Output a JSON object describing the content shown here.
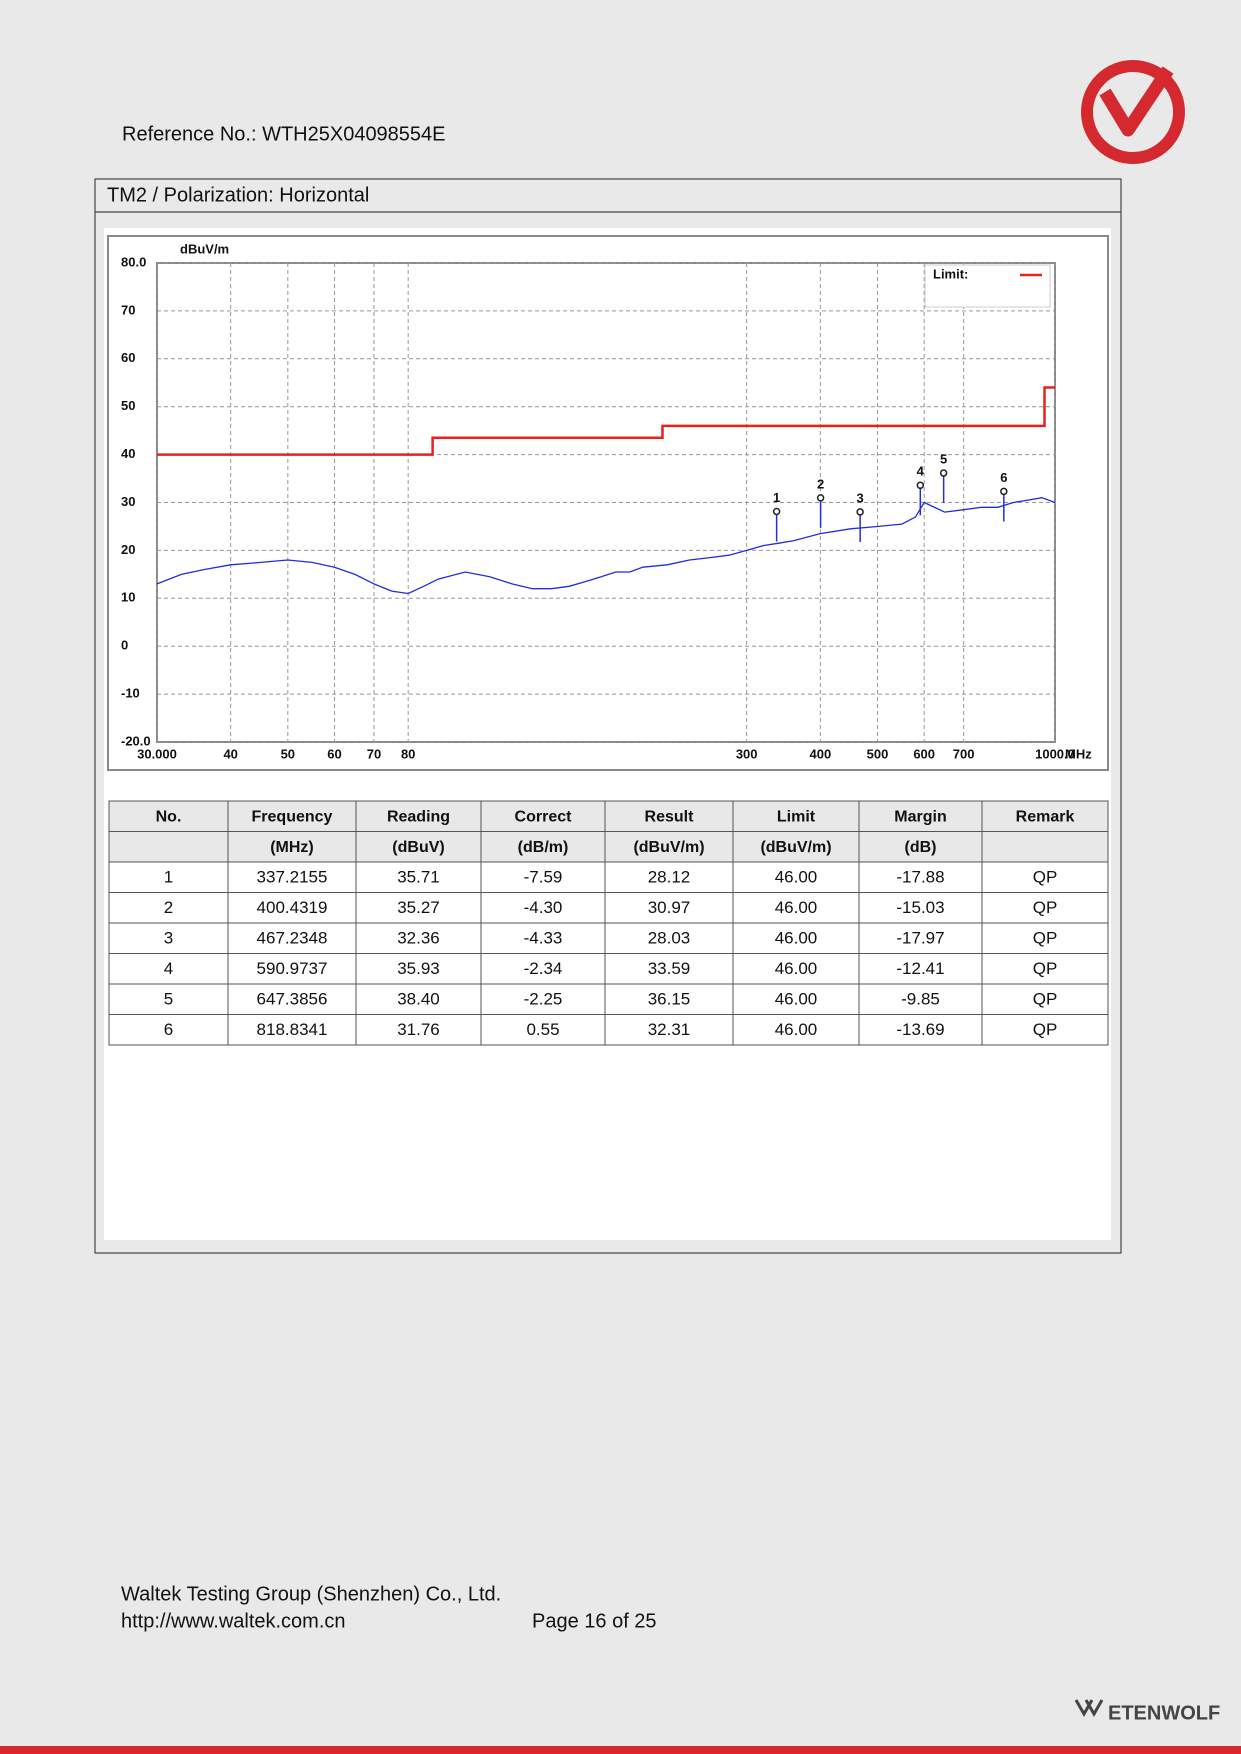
{
  "header": {
    "reference": "Reference No.: WTH25X04098554E"
  },
  "section": {
    "title": "TM2 / Polarization: Horizontal"
  },
  "chart_data": {
    "type": "line",
    "y_label": "dBuV/m",
    "x_label": "MHz",
    "xlog": true,
    "grid": true,
    "legend": "top-right",
    "xlim": [
      30,
      1000
    ],
    "xticks": [
      {
        "value": 30,
        "label": "30.000"
      },
      40,
      50,
      60,
      70,
      80,
      300,
      400,
      500,
      600,
      700,
      {
        "value": 1000,
        "label": "1000.0"
      }
    ],
    "ylim": [
      -20,
      80
    ],
    "yticks": [
      {
        "value": -20,
        "label": "-20.0"
      },
      -10,
      0,
      10,
      20,
      30,
      40,
      50,
      60,
      70,
      {
        "value": 80,
        "label": "80.0"
      }
    ],
    "series": [
      {
        "name": "Limit:",
        "color": "#e8211c",
        "x": [
          30,
          88,
          88,
          216,
          216,
          960,
          960,
          1000
        ],
        "values": [
          40,
          40,
          43.5,
          43.5,
          46,
          46,
          54,
          54
        ]
      },
      {
        "color": "#1f2ee0",
        "x": [
          30,
          33,
          36,
          40,
          45,
          50,
          55,
          60,
          65,
          70,
          75,
          80,
          85,
          90,
          100,
          110,
          120,
          130,
          140,
          150,
          160,
          170,
          180,
          190,
          200,
          220,
          240,
          260,
          280,
          300,
          320,
          340,
          360,
          400,
          450,
          500,
          550,
          580,
          600,
          650,
          700,
          750,
          800,
          850,
          900,
          950,
          1000
        ],
        "values": [
          13,
          15,
          16,
          17,
          17.5,
          18,
          17.5,
          16.5,
          15,
          13,
          11.5,
          11,
          12.5,
          14,
          15.5,
          14.5,
          13,
          12,
          12,
          12.5,
          13.5,
          14.5,
          15.5,
          15.5,
          16.5,
          17,
          18,
          18.5,
          19,
          20,
          21,
          21.5,
          22,
          23.5,
          24.5,
          25,
          25.5,
          27,
          30,
          28,
          28.5,
          29,
          29,
          30,
          30.5,
          31,
          30
        ]
      }
    ],
    "markers": {
      "labels": [
        "1",
        "2",
        "3",
        "4",
        "5",
        "6"
      ],
      "x": [
        337.2155,
        400.4319,
        467.2348,
        590.9737,
        647.3856,
        818.8341
      ],
      "values": [
        28.12,
        30.97,
        28.03,
        33.59,
        36.15,
        32.31
      ]
    }
  },
  "table": {
    "header": [
      [
        "No.",
        "Frequency",
        "Reading",
        "Correct",
        "Result",
        "Limit",
        "Margin",
        "Remark"
      ],
      [
        null,
        "(MHz)",
        "(dBuV)",
        "(dB/m)",
        "(dBuV/m)",
        "(dBuV/m)",
        "(dB)",
        null
      ]
    ],
    "rows": [
      [
        "1",
        "337.2155",
        "35.71",
        "-7.59",
        "28.12",
        "46.00",
        "-17.88",
        "QP"
      ],
      [
        "2",
        "400.4319",
        "35.27",
        "-4.30",
        "30.97",
        "46.00",
        "-15.03",
        "QP"
      ],
      [
        "3",
        "467.2348",
        "32.36",
        "-4.33",
        "28.03",
        "46.00",
        "-17.97",
        "QP"
      ],
      [
        "4",
        "590.9737",
        "35.93",
        "-2.34",
        "33.59",
        "46.00",
        "-12.41",
        "QP"
      ],
      [
        "5",
        "647.3856",
        "38.40",
        "-2.25",
        "36.15",
        "46.00",
        "-9.85",
        "QP"
      ],
      [
        "6",
        "818.8341",
        "31.76",
        "0.55",
        "32.31",
        "46.00",
        "-13.69",
        "QP"
      ]
    ]
  },
  "footer": {
    "company": "Waltek Testing Group (Shenzhen) Co., Ltd.",
    "url": "http://www.waltek.com.cn",
    "page": "Page 16 of 25",
    "brand": "ETENWOLF"
  }
}
